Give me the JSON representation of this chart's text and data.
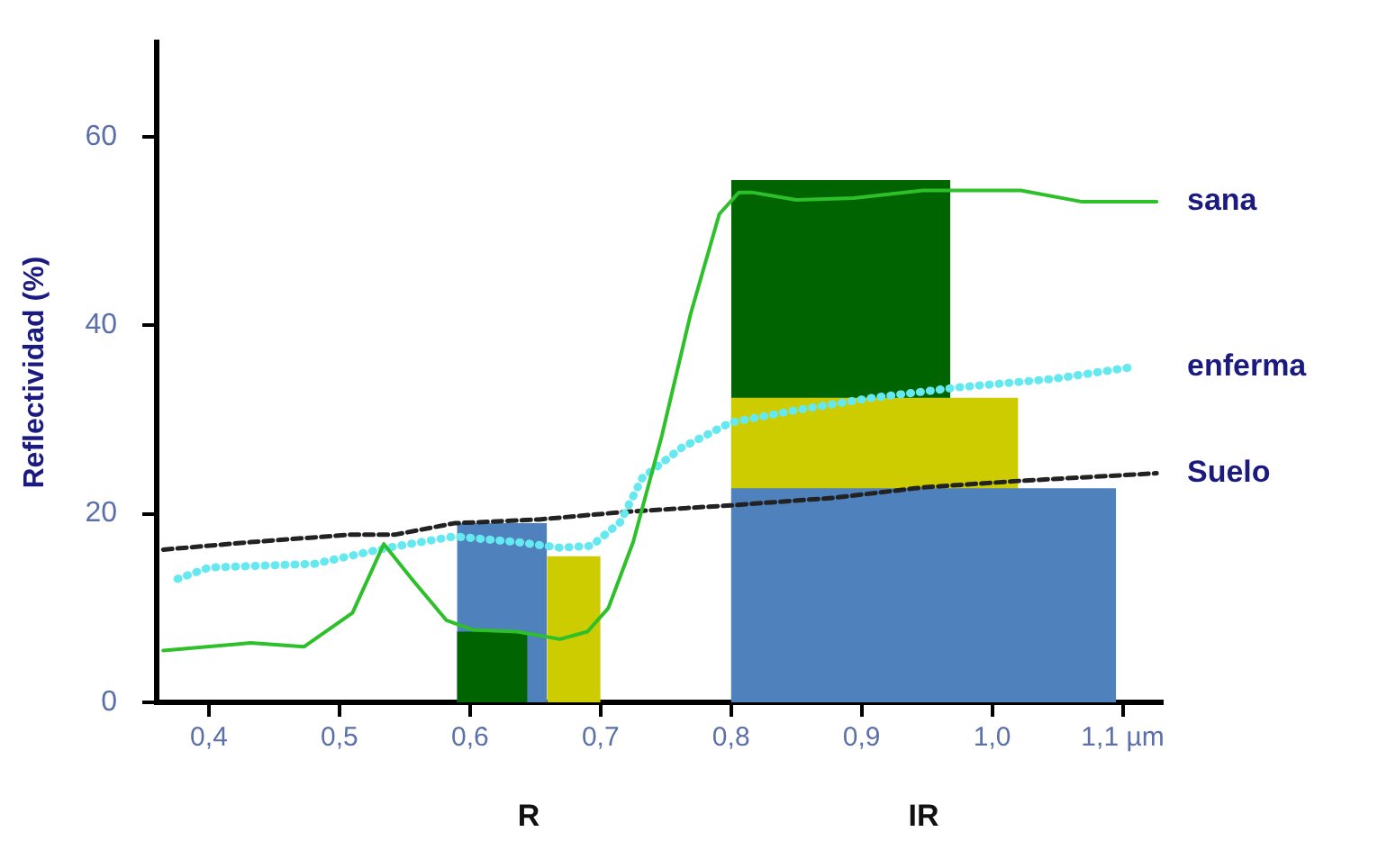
{
  "chart_data": {
    "type": "line",
    "ylabel": "Reflectividad (%)",
    "xlim": [
      0.36,
      1.13
    ],
    "ylim": [
      0,
      70
    ],
    "xticks": [
      {
        "value": 0.4,
        "label": "0,4"
      },
      {
        "value": 0.5,
        "label": "0,5"
      },
      {
        "value": 0.6,
        "label": "0,6"
      },
      {
        "value": 0.7,
        "label": "0,7"
      },
      {
        "value": 0.8,
        "label": "0,8"
      },
      {
        "value": 0.9,
        "label": "0,9"
      },
      {
        "value": 1.0,
        "label": "1,0"
      },
      {
        "value": 1.1,
        "label": "1,1 µm"
      }
    ],
    "yticks": [
      0,
      20,
      40,
      60
    ],
    "grid": false,
    "legend": false,
    "annotations": [
      "R",
      "IR"
    ],
    "series": [
      {
        "type": "area",
        "color": "#4f81bd",
        "x": [
          0.59,
          0.659
        ],
        "values": [
          19,
          19
        ]
      },
      {
        "type": "area",
        "color": "#cccc00",
        "x": [
          0.659,
          0.7
        ],
        "values": [
          15.5,
          15.5
        ]
      },
      {
        "type": "area",
        "color": "#006400",
        "x": [
          0.59,
          0.644
        ],
        "values": [
          7.5,
          7.5
        ]
      },
      {
        "type": "area",
        "color": "#006400",
        "x": [
          0.8,
          0.968
        ],
        "values": [
          55.4,
          55.4
        ]
      },
      {
        "type": "area",
        "color": "#cccc00",
        "x": [
          0.8,
          1.02
        ],
        "values": [
          32.3,
          32.3
        ]
      },
      {
        "type": "area",
        "color": "#4f81bd",
        "x": [
          0.8,
          1.095
        ],
        "values": [
          22.7,
          22.7
        ]
      },
      {
        "name": "Suelo",
        "color": "#222222",
        "line_style": "dashed",
        "x": [
          0.365,
          0.432,
          0.51,
          0.543,
          0.588,
          0.653,
          0.718,
          0.8,
          0.879,
          0.947,
          1.022,
          1.126
        ],
        "values": [
          16.2,
          17,
          17.8,
          17.8,
          19,
          19.4,
          20.2,
          20.9,
          21.7,
          22.8,
          23.5,
          24.3
        ]
      },
      {
        "name": "enferma",
        "color": "#66e8f0",
        "line_style": "dotted",
        "x": [
          0.376,
          0.4,
          0.481,
          0.537,
          0.588,
          0.636,
          0.669,
          0.693,
          0.715,
          0.732,
          0.762,
          0.8,
          0.85,
          0.908,
          0.973,
          1.046,
          1.109
        ],
        "values": [
          13.1,
          14.3,
          14.7,
          16.4,
          17.6,
          17,
          16.4,
          16.6,
          19.1,
          23.8,
          27,
          29.7,
          31,
          32.3,
          33.4,
          34.3,
          35.6
        ]
      },
      {
        "name": "sana",
        "color": "#2ec02a",
        "line_style": "solid",
        "x": [
          0.365,
          0.432,
          0.473,
          0.51,
          0.534,
          0.556,
          0.582,
          0.602,
          0.636,
          0.669,
          0.69,
          0.706,
          0.725,
          0.747,
          0.769,
          0.791,
          0.806,
          0.816,
          0.85,
          0.894,
          0.947,
          1.022,
          1.069,
          1.126
        ],
        "values": [
          5.5,
          6.3,
          5.9,
          9.5,
          16.8,
          13,
          8.7,
          7.7,
          7.5,
          6.7,
          7.5,
          10,
          17,
          28.3,
          41.2,
          51.8,
          54.1,
          54.1,
          53.3,
          53.5,
          54.3,
          54.3,
          53.1,
          53.1
        ]
      }
    ]
  }
}
